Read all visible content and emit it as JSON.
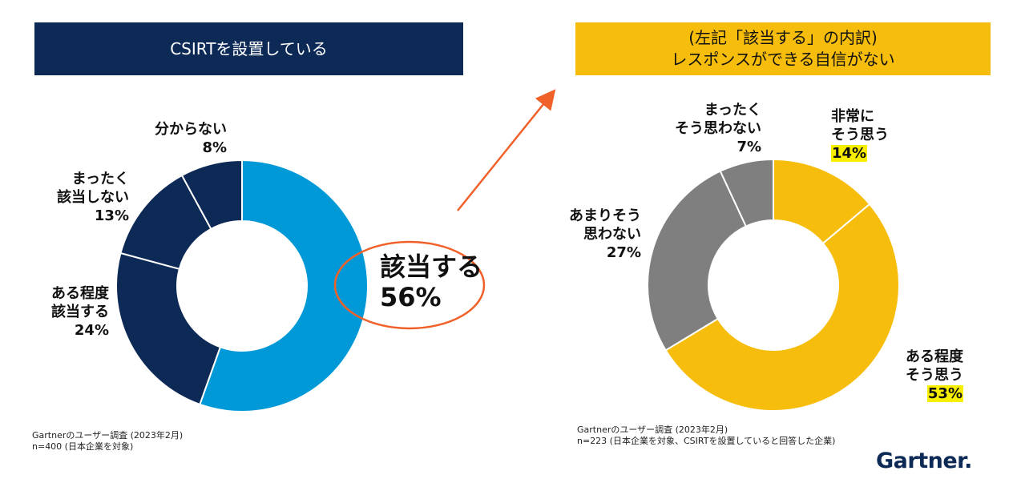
{
  "colors": {
    "navy": "#0d2a57",
    "blue": "#0099d8",
    "gold": "#f6bd0d",
    "gray": "#7f7f7f",
    "orange": "#f0612a",
    "highlight": "#f7ee00"
  },
  "chart_data": [
    {
      "type": "pie",
      "title": "CSIRTを設置している",
      "slices": [
        {
          "label": "該当する",
          "value": 56,
          "pct_text": "56%"
        },
        {
          "label": "ある程度該当する",
          "value": 24,
          "pct_text": "24%"
        },
        {
          "label": "まったく該当しない",
          "value": 13,
          "pct_text": "13%"
        },
        {
          "label": "分からない",
          "value": 8,
          "pct_text": "8%"
        }
      ],
      "source_line1": "Gartnerのユーザー調査 (2023年2月)",
      "source_line2": "n=400 (日本企業を対象)"
    },
    {
      "type": "pie",
      "title_line1": "(左記「該当する」の内訳)",
      "title_line2": "レスポンスができる自信がない",
      "slices": [
        {
          "label": "非常にそう思う",
          "value": 14,
          "pct_text": "14%"
        },
        {
          "label": "ある程度そう思う",
          "value": 53,
          "pct_text": "53%"
        },
        {
          "label": "あまりそう思わない",
          "value": 27,
          "pct_text": "27%"
        },
        {
          "label": "まったくそう思わない",
          "value": 7,
          "pct_text": "7%"
        }
      ],
      "source_line1": "Gartnerのユーザー調査 (2023年2月)",
      "source_line2": "n=223 (日本企業を対象、CSIRTを設置していると回答した企業)"
    }
  ],
  "labels": {
    "left": {
      "wakaranai": [
        "分からない"
      ],
      "mattaku": [
        "まったく",
        "該当しない"
      ],
      "aruteido": [
        "ある程度",
        "該当する"
      ],
      "gaitou": [
        "該当する"
      ]
    },
    "right": {
      "hijou": [
        "非常に",
        "そう思う"
      ],
      "aruteido": [
        "ある程度",
        "そう思う"
      ],
      "amari": [
        "あまりそう",
        "思わない"
      ],
      "mattaku": [
        "まったく",
        "そう思わない"
      ]
    }
  },
  "logo": {
    "text": "Gartner",
    "dot": "."
  }
}
